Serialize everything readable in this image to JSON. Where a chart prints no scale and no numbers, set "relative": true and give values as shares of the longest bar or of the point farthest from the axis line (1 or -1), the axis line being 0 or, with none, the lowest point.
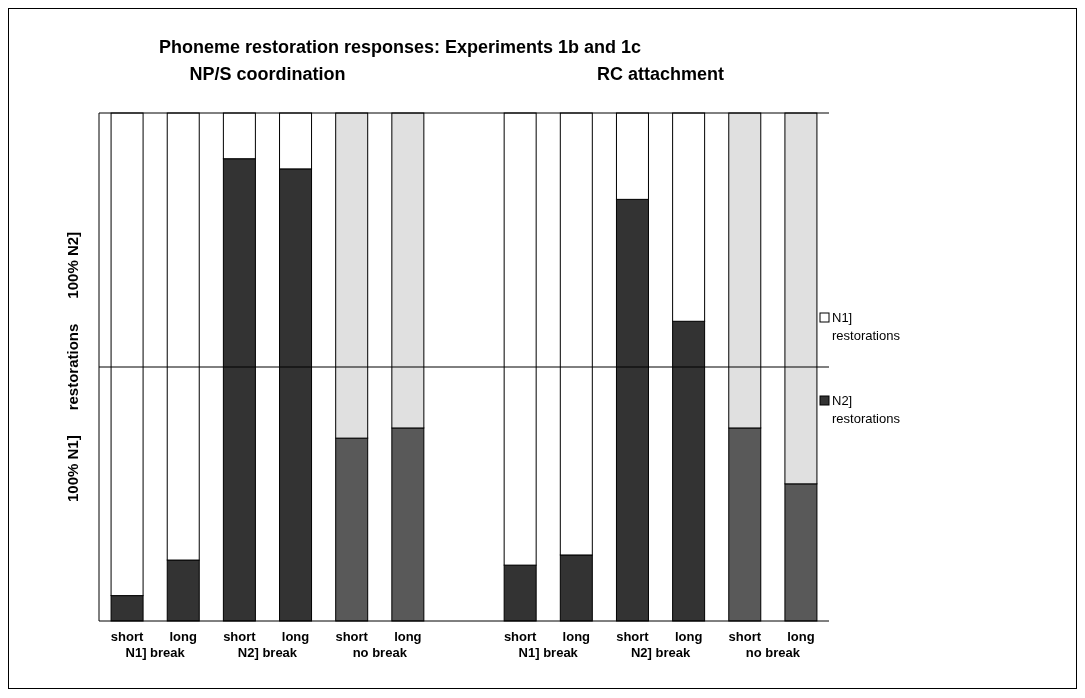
{
  "chart_data": {
    "type": "bar",
    "title": "Phoneme restoration responses:  Experiments 1b and 1c",
    "ylabel": "100% N1]      restorations      100% N2]",
    "categories": [
      "short",
      "long",
      "short",
      "long",
      "short",
      "long",
      null,
      "short",
      "long",
      "short",
      "long",
      "short",
      "long"
    ],
    "series": [
      {
        "name": "N2] restorations",
        "color": "#333333",
        "colors": [
          "#333333",
          "#333333",
          "#333333",
          "#333333",
          "#595959",
          "#595959",
          null,
          "#333333",
          "#333333",
          "#333333",
          "#333333",
          "#595959",
          "#595959"
        ],
        "values": [
          0.05,
          0.12,
          0.91,
          0.89,
          0.36,
          0.38,
          null,
          0.11,
          0.13,
          0.83,
          0.59,
          0.38,
          0.27
        ]
      },
      {
        "name": "N1] restorations",
        "color": "#ffffff",
        "colors": [
          "#ffffff",
          "#ffffff",
          "#ffffff",
          "#ffffff",
          "#e0e0e0",
          "#e0e0e0",
          null,
          "#ffffff",
          "#ffffff",
          "#ffffff",
          "#ffffff",
          "#e0e0e0",
          "#e0e0e0"
        ],
        "values": [
          0.95,
          0.88,
          0.09,
          0.11,
          0.64,
          0.62,
          null,
          0.89,
          0.87,
          0.17,
          0.41,
          0.62,
          0.73
        ]
      }
    ],
    "stacked": true,
    "relative": true,
    "legend": "right",
    "ref_lines": [
      {
        "axis": "y",
        "value": 0.5,
        "color": "#000000"
      }
    ],
    "annotations": [
      "NP/S coordination",
      "RC attachment",
      "N1] break",
      "N2] break",
      "no break",
      "N1] break",
      "N2] break",
      "no break"
    ]
  }
}
